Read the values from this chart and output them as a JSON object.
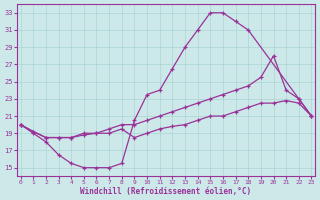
{
  "line1_x": [
    0,
    1,
    2,
    3,
    4,
    5,
    6,
    7,
    8,
    9,
    10,
    11,
    12,
    13,
    14,
    15,
    16,
    17,
    18,
    22,
    23
  ],
  "line1_y": [
    20.0,
    19.0,
    18.0,
    16.5,
    15.5,
    15.0,
    15.0,
    15.0,
    15.5,
    20.5,
    23.5,
    24.0,
    26.5,
    29.0,
    31.0,
    33.0,
    33.0,
    32.0,
    31.0,
    23.0,
    21.0
  ],
  "line2_x": [
    0,
    1,
    2,
    3,
    4,
    5,
    6,
    7,
    8,
    9,
    10,
    11,
    12,
    13,
    14,
    15,
    16,
    17,
    18,
    19,
    20,
    21,
    22,
    23
  ],
  "line2_y": [
    20.0,
    19.2,
    18.5,
    18.5,
    18.5,
    19.0,
    19.0,
    19.5,
    20.0,
    20.0,
    20.5,
    21.0,
    21.5,
    22.0,
    22.5,
    23.0,
    23.5,
    24.0,
    24.5,
    25.5,
    28.0,
    24.0,
    23.0,
    21.0
  ],
  "line3_x": [
    0,
    1,
    2,
    3,
    4,
    5,
    6,
    7,
    8,
    9,
    10,
    11,
    12,
    13,
    14,
    15,
    16,
    17,
    18,
    19,
    20,
    21,
    22,
    23
  ],
  "line3_y": [
    20.0,
    19.2,
    18.5,
    18.5,
    18.5,
    18.8,
    19.0,
    19.0,
    19.5,
    18.5,
    19.0,
    19.5,
    19.8,
    20.0,
    20.5,
    21.0,
    21.0,
    21.5,
    22.0,
    22.5,
    22.5,
    22.8,
    22.5,
    21.0
  ],
  "color": "#993399",
  "xlabel": "Windchill (Refroidissement éolien,°C)",
  "yticks": [
    15,
    17,
    19,
    21,
    23,
    25,
    27,
    29,
    31,
    33
  ],
  "xticks": [
    0,
    1,
    2,
    3,
    4,
    5,
    6,
    7,
    8,
    9,
    10,
    11,
    12,
    13,
    14,
    15,
    16,
    17,
    18,
    19,
    20,
    21,
    22,
    23
  ],
  "xlim": [
    -0.3,
    23.3
  ],
  "ylim": [
    14.0,
    34.0
  ],
  "bg_color": "#cce8e8",
  "grid_color": "#aad4d4"
}
